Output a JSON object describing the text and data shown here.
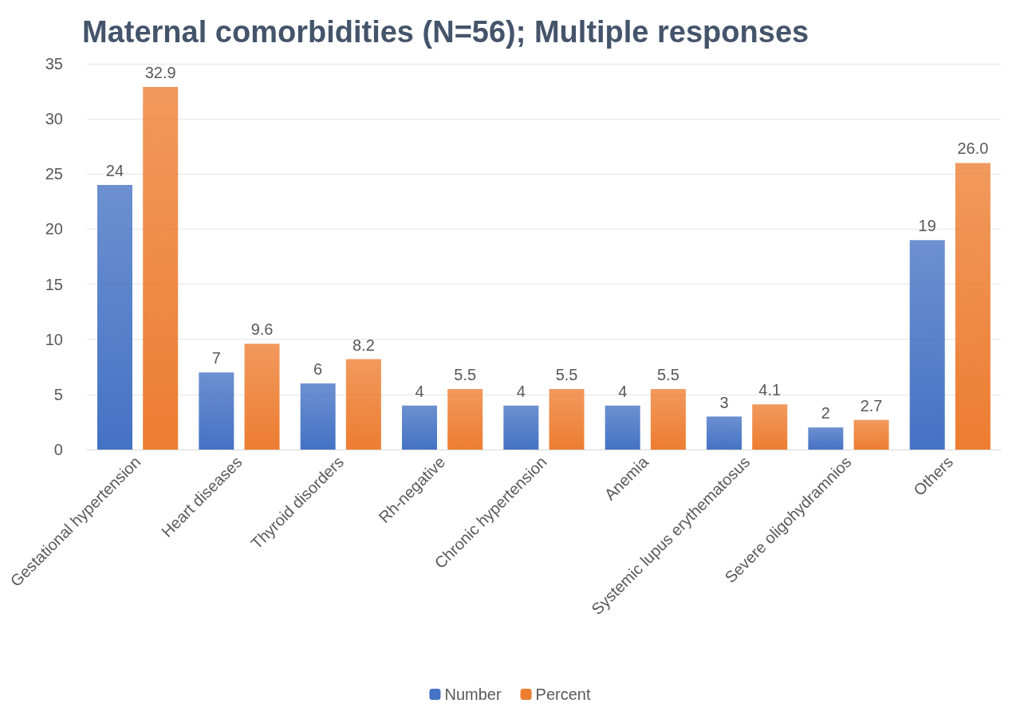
{
  "chart_data": {
    "type": "bar",
    "title": "Maternal comorbidities (N=56); Multiple responses",
    "categories": [
      "Gestational hypertension",
      "Heart diseases",
      "Thyroid disorders",
      "Rh-negative",
      "Chronic hypertension",
      "Anemia",
      "Systemic lupus erythematosus",
      "Severe oligohydramnios",
      "Others"
    ],
    "series": [
      {
        "name": "Number",
        "color": "#4472c4",
        "values": [
          24,
          7,
          6,
          4,
          4,
          4,
          3,
          2,
          19
        ],
        "value_labels": [
          "24",
          "7",
          "6",
          "4",
          "4",
          "4",
          "3",
          "2",
          "19"
        ]
      },
      {
        "name": "Percent",
        "color": "#ed7d31",
        "values": [
          32.9,
          9.6,
          8.2,
          5.5,
          5.5,
          5.5,
          4.1,
          2.7,
          26.0
        ],
        "value_labels": [
          "32.9",
          "9.6",
          "8.2",
          "5.5",
          "5.5",
          "5.5",
          "4.1",
          "2.7",
          "26.0"
        ]
      }
    ],
    "ylim": [
      0,
      35
    ],
    "yticks": [
      0,
      5,
      10,
      15,
      20,
      25,
      30,
      35
    ],
    "grid": "y",
    "legend": "bottom"
  }
}
